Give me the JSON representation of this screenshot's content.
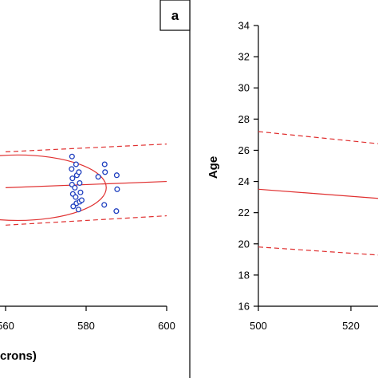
{
  "chart_data": [
    {
      "type": "scatter",
      "panel_label": "a",
      "xlabel": "crons)",
      "x_ticks": [
        560,
        580,
        600
      ],
      "x_tick_labels": [
        "560",
        "580",
        "600"
      ],
      "xlim": [
        560,
        600
      ],
      "grid": false,
      "colors": {
        "points": "#1f3fbf",
        "fit": "#e03030"
      },
      "series": [
        {
          "kind": "points",
          "points": [
            {
              "x": 576.5,
              "y": 25.6
            },
            {
              "x": 577.5,
              "y": 25.1
            },
            {
              "x": 576.4,
              "y": 24.8
            },
            {
              "x": 576.6,
              "y": 24.2
            },
            {
              "x": 577.7,
              "y": 24.4
            },
            {
              "x": 578.2,
              "y": 24.6
            },
            {
              "x": 576.5,
              "y": 23.8
            },
            {
              "x": 577.2,
              "y": 23.6
            },
            {
              "x": 578.4,
              "y": 23.9
            },
            {
              "x": 576.7,
              "y": 23.2
            },
            {
              "x": 577.4,
              "y": 23.0
            },
            {
              "x": 578.6,
              "y": 23.3
            },
            {
              "x": 577.6,
              "y": 22.6
            },
            {
              "x": 578.4,
              "y": 22.7
            },
            {
              "x": 576.8,
              "y": 22.4
            },
            {
              "x": 578.1,
              "y": 22.2
            },
            {
              "x": 578.9,
              "y": 22.8
            },
            {
              "x": 583.0,
              "y": 24.3
            },
            {
              "x": 584.6,
              "y": 25.1
            },
            {
              "x": 584.7,
              "y": 24.6
            },
            {
              "x": 584.5,
              "y": 22.5
            },
            {
              "x": 587.6,
              "y": 24.4
            },
            {
              "x": 587.7,
              "y": 23.5
            },
            {
              "x": 587.5,
              "y": 22.1
            }
          ]
        },
        {
          "kind": "fit-line",
          "style": "solid",
          "values": [
            {
              "x": 560,
              "y": 23.6
            },
            {
              "x": 600,
              "y": 24.0
            }
          ]
        },
        {
          "kind": "upper-bound",
          "style": "dashed",
          "values": [
            {
              "x": 560,
              "y": 25.9
            },
            {
              "x": 600,
              "y": 26.4
            }
          ]
        },
        {
          "kind": "lower-bound",
          "style": "dashed",
          "values": [
            {
              "x": 560,
              "y": 21.2
            },
            {
              "x": 600,
              "y": 21.8
            }
          ]
        },
        {
          "kind": "ellipse",
          "style": "solid",
          "center": {
            "x": 563.0,
            "y": 23.6
          },
          "x_radius": 22.0,
          "y_radius": 2.1
        }
      ]
    },
    {
      "type": "line",
      "ylabel": "Age",
      "xlim": [
        500,
        540
      ],
      "ylim": [
        16,
        34
      ],
      "y_ticks": [
        "16",
        "18",
        "20",
        "22",
        "24",
        "26",
        "28",
        "30",
        "32",
        "34"
      ],
      "x_ticks": [
        500,
        520
      ],
      "x_tick_labels": [
        "500",
        "520"
      ],
      "grid": false,
      "colors": {
        "fit": "#e03030"
      },
      "series": [
        {
          "kind": "fit-line",
          "style": "solid",
          "values": [
            {
              "x": 500,
              "y": 23.5
            },
            {
              "x": 540,
              "y": 22.6
            }
          ]
        },
        {
          "kind": "upper-bound",
          "style": "dashed",
          "values": [
            {
              "x": 500,
              "y": 27.2
            },
            {
              "x": 540,
              "y": 26.0
            }
          ]
        },
        {
          "kind": "lower-bound",
          "style": "dashed",
          "values": [
            {
              "x": 500,
              "y": 19.8
            },
            {
              "x": 540,
              "y": 19.0
            }
          ]
        }
      ]
    }
  ]
}
